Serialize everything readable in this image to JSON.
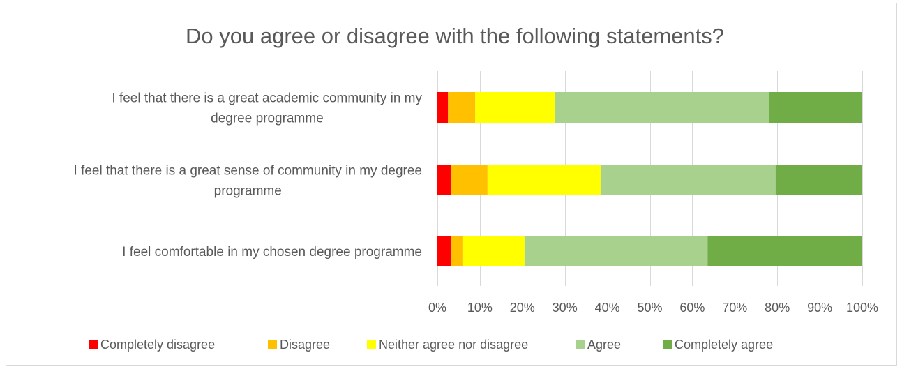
{
  "chart_data": {
    "type": "bar",
    "orientation": "horizontal",
    "stacked": "percent",
    "title": "Do you agree or disagree with the following statements?",
    "categories": [
      [
        "I feel that there is a great academic community in my",
        "degree programme"
      ],
      [
        "I feel that there is a great sense of community in my degree",
        "programme"
      ],
      [
        "I feel comfortable in my chosen degree programme"
      ]
    ],
    "series": [
      {
        "name": "Completely disagree",
        "color": "#ff0000",
        "values": [
          2.5,
          3.3,
          3.3
        ]
      },
      {
        "name": "Disagree",
        "color": "#ffc000",
        "values": [
          6.4,
          8.5,
          2.6
        ]
      },
      {
        "name": "Neither agree nor disagree",
        "color": "#ffff00",
        "values": [
          18.8,
          26.6,
          14.6
        ]
      },
      {
        "name": "Agree",
        "color": "#a9d18e",
        "values": [
          50.3,
          41.2,
          43.1
        ]
      },
      {
        "name": "Completely agree",
        "color": "#70ad47",
        "values": [
          22.0,
          20.4,
          36.4
        ]
      }
    ],
    "xlim": [
      0,
      100
    ],
    "xticks": [
      "0%",
      "10%",
      "20%",
      "30%",
      "40%",
      "50%",
      "60%",
      "70%",
      "80%",
      "90%",
      "100%"
    ],
    "grid": true,
    "legend": "bottom"
  }
}
